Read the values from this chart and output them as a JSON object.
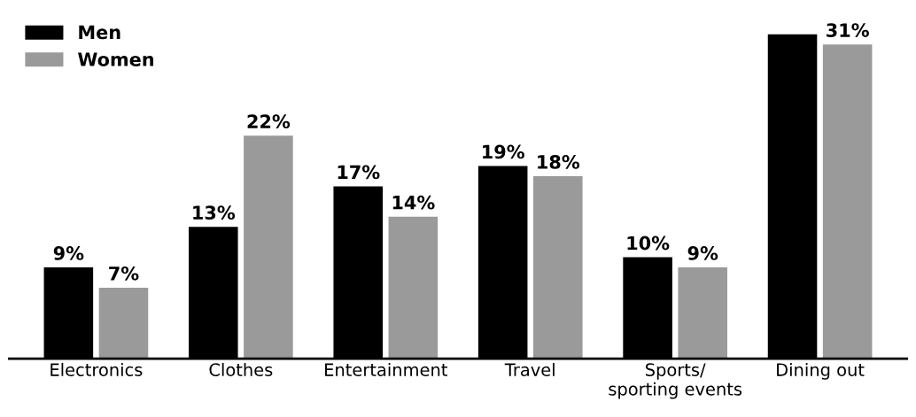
{
  "chart_data": {
    "type": "bar",
    "categories": [
      "Electronics",
      "Clothes",
      "Entertainment",
      "Travel",
      "Sports/\nsporting events",
      "Dining out"
    ],
    "series": [
      {
        "name": "Men",
        "color": "#000000",
        "values": [
          9,
          13,
          17,
          19,
          10,
          32
        ],
        "value_labels": [
          "9%",
          "13%",
          "17%",
          "19%",
          "10%",
          null
        ]
      },
      {
        "name": "Women",
        "color": "#9a9a9a",
        "values": [
          7,
          22,
          14,
          18,
          9,
          31
        ],
        "value_labels": [
          "7%",
          "22%",
          "14%",
          "18%",
          "9%",
          "31%"
        ]
      }
    ],
    "legend": "top left",
    "grid": false
  }
}
